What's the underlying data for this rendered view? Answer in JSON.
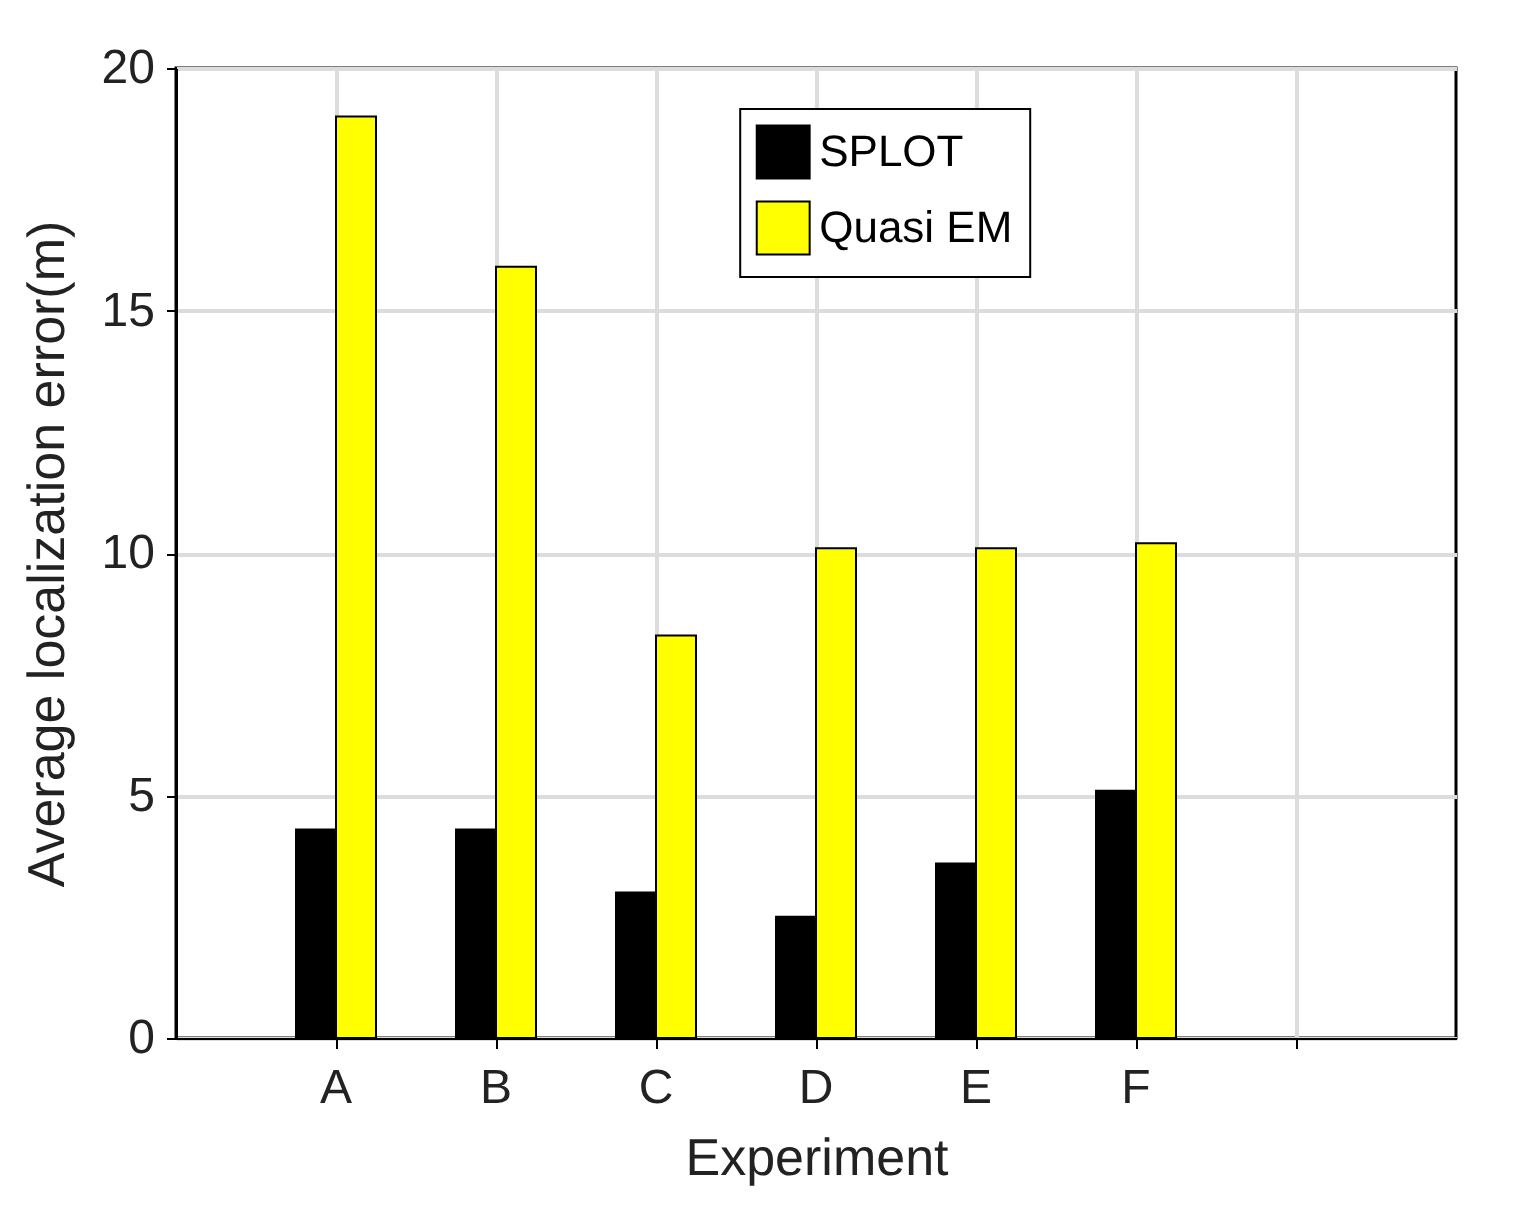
{
  "chart_data": {
    "type": "bar",
    "xlabel": "Experiment",
    "ylabel": "Average localization error(m)",
    "categories": [
      "A",
      "B",
      "C",
      "D",
      "E",
      "F",
      null
    ],
    "series": [
      {
        "name": "SPLOT",
        "color": "#000000",
        "values": [
          4.3,
          4.3,
          3.0,
          2.5,
          3.6,
          5.1,
          null
        ]
      },
      {
        "name": "Quasi EM",
        "color": "#ffff00",
        "values": [
          19.0,
          15.9,
          8.3,
          10.1,
          10.1,
          10.2,
          null
        ]
      }
    ],
    "ylim": [
      0,
      20
    ],
    "yticks": [
      0,
      5,
      10,
      15,
      20
    ],
    "grid": true,
    "legend": "top"
  }
}
